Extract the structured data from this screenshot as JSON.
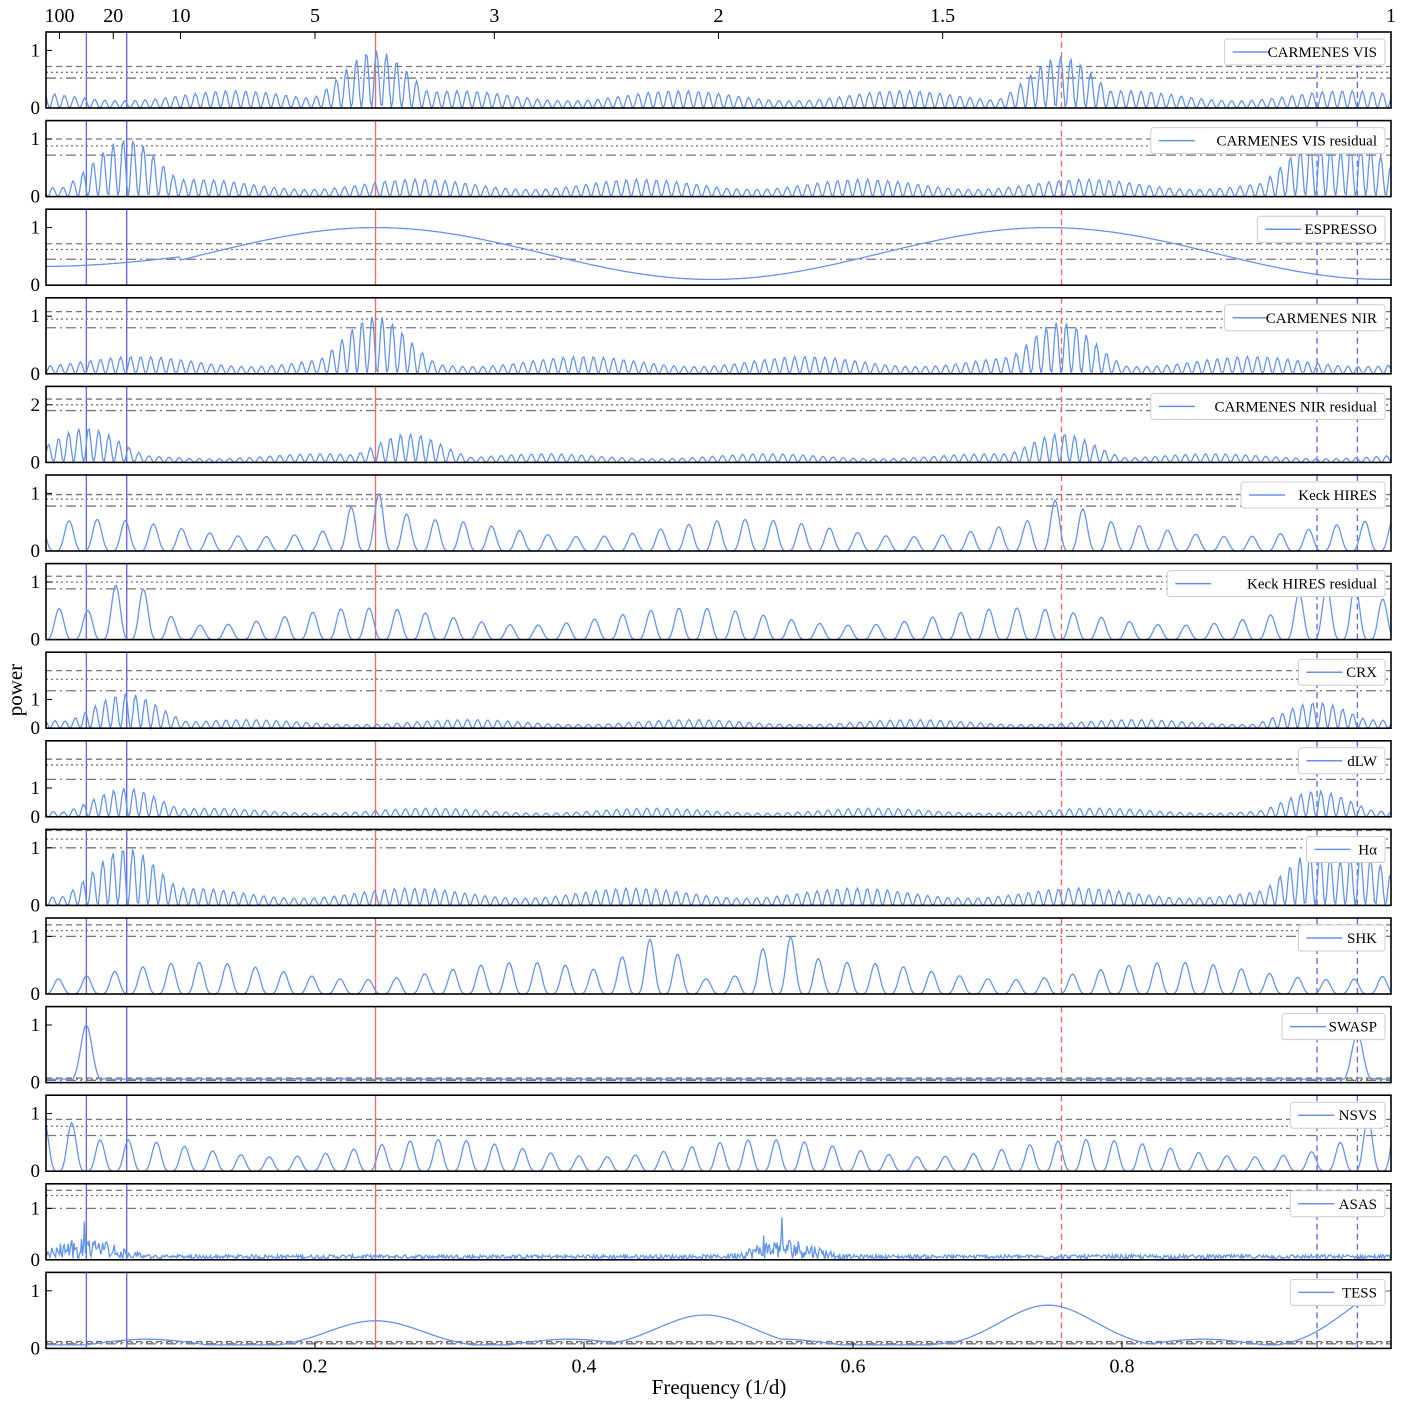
{
  "figure": {
    "xlabel": "Frequency (1/d)",
    "ylabel": "power",
    "xlim": [
      0,
      1
    ],
    "x_ticks": [
      "0.2",
      "0.4",
      "0.6",
      "0.8"
    ],
    "x_tick_values": [
      0.2,
      0.4,
      0.6,
      0.8
    ],
    "top_axis_ticks": [
      "100",
      "20",
      "10",
      "5",
      "3",
      "2",
      "1.5",
      "1"
    ],
    "top_axis_periods": [
      100,
      20,
      10,
      5,
      3,
      2,
      1.5,
      1
    ],
    "colors": {
      "series": "#6495ed",
      "period_marker": "#6a6ae8",
      "planet_marker": "#f06a6a",
      "threshold": "#777777",
      "frame": "#000000"
    }
  },
  "chart_data": {
    "type": "line",
    "x_scale": "linear",
    "top_axis": "period (d) = 1/frequency",
    "vertical_markers": {
      "solid_blue_frequencies": [
        0.03,
        0.06
      ],
      "solid_red_frequency": 0.245,
      "dashed_red_frequency": 0.755,
      "dashed_blue_frequencies": [
        0.945,
        0.975
      ]
    },
    "panels": [
      {
        "name": "CARMENES VIS",
        "yticks": [
          "0",
          "1"
        ],
        "ylim": [
          0,
          1.25
        ],
        "style": "fast",
        "peak_freqs": [
          0.245,
          0.755
        ],
        "peak_heights": [
          1.0,
          0.9
        ],
        "thresholds": [
          0.72,
          0.62,
          0.52
        ]
      },
      {
        "name": "CARMENES VIS residual",
        "yticks": [
          "0",
          "1"
        ],
        "ylim": [
          0,
          1.25
        ],
        "style": "fast",
        "peak_freqs": [
          0.06,
          0.945,
          0.975
        ],
        "peak_heights": [
          1.0,
          0.95,
          0.9
        ],
        "thresholds": [
          1.0,
          0.88,
          0.72
        ]
      },
      {
        "name": "ESPRESSO",
        "yticks": [
          "0",
          "1"
        ],
        "ylim": [
          0,
          1.25
        ],
        "style": "smooth",
        "peak_freqs": [
          0.245,
          0.755
        ],
        "peak_heights": [
          1.0,
          0.96
        ],
        "thresholds": [
          0.72,
          0.62,
          0.45
        ]
      },
      {
        "name": "CARMENES NIR",
        "yticks": [
          "0",
          "1"
        ],
        "ylim": [
          0,
          1.25
        ],
        "style": "fast",
        "peak_freqs": [
          0.245,
          0.755
        ],
        "peak_heights": [
          1.0,
          0.9
        ],
        "thresholds": [
          1.08,
          0.95,
          0.8
        ]
      },
      {
        "name": "CARMENES NIR residual",
        "yticks": [
          "0",
          "2"
        ],
        "ylim": [
          0,
          2.5
        ],
        "style": "fast",
        "peak_freqs": [
          0.03,
          0.27,
          0.755
        ],
        "peak_heights": [
          1.2,
          1.0,
          1.0
        ],
        "thresholds": [
          2.2,
          2.0,
          1.8
        ]
      },
      {
        "name": "Keck HIRES",
        "yticks": [
          "0",
          "1"
        ],
        "ylim": [
          0,
          1.25
        ],
        "style": "sparse",
        "peak_freqs": [
          0.245,
          0.755
        ],
        "peak_heights": [
          1.0,
          0.9
        ],
        "thresholds": [
          0.98,
          0.9,
          0.78
        ]
      },
      {
        "name": "Keck HIRES residual",
        "yticks": [
          "0",
          "1"
        ],
        "ylim": [
          0,
          1.25
        ],
        "style": "sparse",
        "peak_freqs": [
          0.06,
          0.945,
          0.975
        ],
        "peak_heights": [
          1.0,
          0.95,
          0.95
        ],
        "thresholds": [
          1.1,
          1.0,
          0.88
        ]
      },
      {
        "name": "CRX",
        "yticks": [
          "0",
          "1"
        ],
        "ylim": [
          0,
          2.5
        ],
        "style": "fast",
        "peak_freqs": [
          0.06,
          0.945
        ],
        "peak_heights": [
          1.2,
          0.9
        ],
        "thresholds": [
          2.0,
          1.7,
          1.3
        ]
      },
      {
        "name": "dLW",
        "yticks": [
          "0",
          "1"
        ],
        "ylim": [
          0,
          2.5
        ],
        "style": "fast",
        "peak_freqs": [
          0.06,
          0.945
        ],
        "peak_heights": [
          1.0,
          0.9
        ],
        "thresholds": [
          2.0,
          1.8,
          1.3
        ]
      },
      {
        "name": "Hα",
        "yticks": [
          "0",
          "1"
        ],
        "ylim": [
          0,
          1.25
        ],
        "style": "fast",
        "peak_freqs": [
          0.06,
          0.945,
          0.975
        ],
        "peak_heights": [
          1.0,
          0.95,
          0.9
        ],
        "thresholds": [
          1.3,
          1.15,
          1.0
        ]
      },
      {
        "name": "SHK",
        "yticks": [
          "0",
          "1"
        ],
        "ylim": [
          0,
          1.25
        ],
        "style": "sparse",
        "peak_freqs": [
          0.45,
          0.55
        ],
        "peak_heights": [
          0.95,
          1.0
        ],
        "thresholds": [
          1.2,
          1.1,
          1.0
        ]
      },
      {
        "name": "SWASP",
        "yticks": [
          "0",
          "1"
        ],
        "ylim": [
          0,
          1.25
        ],
        "style": "sharp",
        "peak_freqs": [
          0.03,
          0.975
        ],
        "peak_heights": [
          1.0,
          0.85
        ],
        "thresholds": [
          0.08,
          0.06,
          0.04
        ]
      },
      {
        "name": "NSVS",
        "yticks": [
          "0",
          "1"
        ],
        "ylim": [
          0,
          1.25
        ],
        "style": "sparse",
        "peak_freqs": [
          0.007,
          0.99
        ],
        "peak_heights": [
          0.95,
          0.95
        ],
        "thresholds": [
          0.9,
          0.78,
          0.62
        ]
      },
      {
        "name": "ASAS",
        "yticks": [
          "0",
          "1"
        ],
        "ylim": [
          0,
          1.4
        ],
        "style": "noise",
        "peak_freqs": [
          0.03,
          0.55
        ],
        "peak_heights": [
          1.0,
          1.0
        ],
        "thresholds": [
          1.35,
          1.25,
          1.0
        ]
      },
      {
        "name": "TESS",
        "yticks": [
          "0",
          "1"
        ],
        "ylim": [
          0,
          1.25
        ],
        "style": "smooth",
        "peak_freqs": [
          0.245,
          0.49,
          0.745,
          1.0
        ],
        "peak_heights": [
          0.48,
          0.58,
          0.75,
          1.0
        ],
        "thresholds": [
          0.12,
          0.1,
          0.08
        ]
      }
    ]
  }
}
